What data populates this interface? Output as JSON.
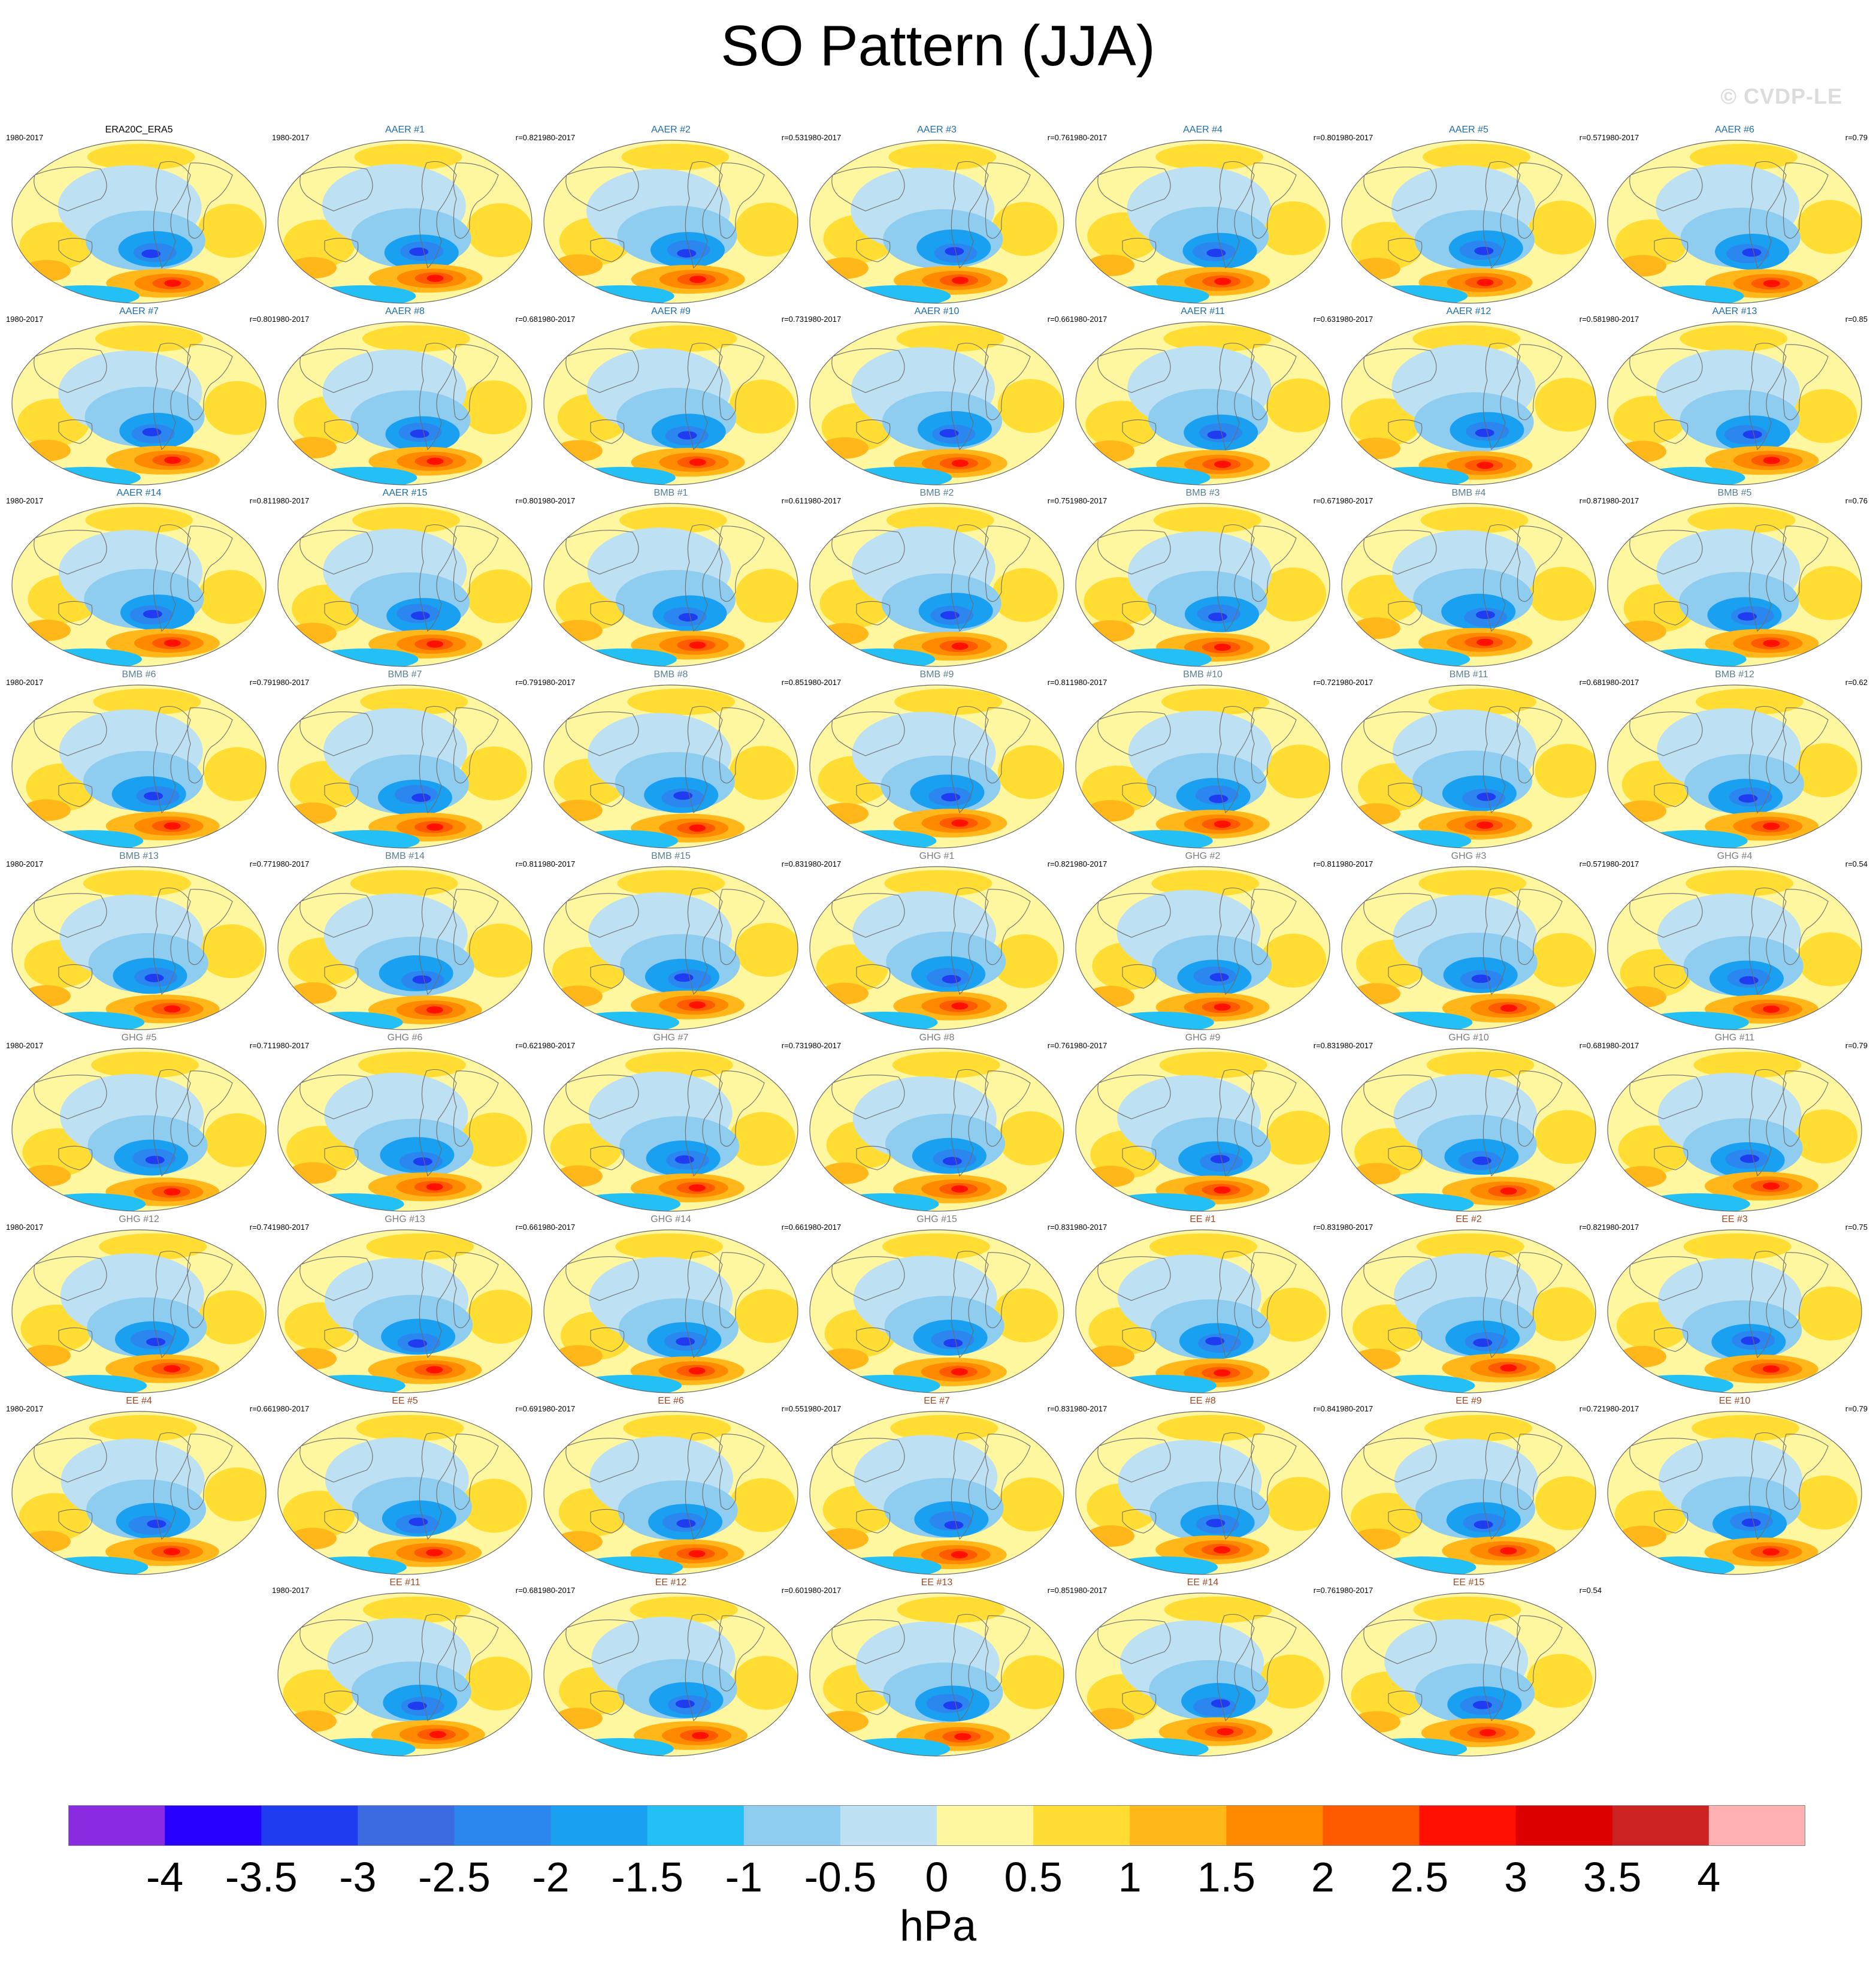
{
  "title": "SO Pattern (JJA)",
  "watermark": "© CVDP-LE",
  "units": "hPa",
  "colors": {
    "AAER": "#1f6ea8",
    "BMB": "#5a7f8e",
    "GHG": "#7d7d7d",
    "EE": "#a0481f",
    "ref": "#000000",
    "land_outline": "#6e6e6e"
  },
  "colorbar": {
    "colors": [
      "#8a2be2",
      "#2800ff",
      "#1f3cf0",
      "#3c6ae0",
      "#2b86f0",
      "#19a0f0",
      "#22c0f5",
      "#8ecdf0",
      "#bde0f2",
      "#fff7a0",
      "#ffdd33",
      "#ffb71a",
      "#ff8a00",
      "#ff5a00",
      "#ff1000",
      "#dd0000",
      "#cc2222",
      "#ffb0b0"
    ],
    "ticks": [
      "-4",
      "-3.5",
      "-3",
      "-2.5",
      "-2",
      "-1.5",
      "-1",
      "-0.5",
      "0",
      "0.5",
      "1",
      "1.5",
      "2",
      "2.5",
      "3",
      "3.5",
      "4"
    ]
  },
  "panels": [
    {
      "title": "ERA20C_ERA5",
      "period": "1980-2017",
      "r": "",
      "group": "ref"
    },
    {
      "title": "AAER #1",
      "period": "1980-2017",
      "r": "r=0.82",
      "group": "AAER"
    },
    {
      "title": "AAER #2",
      "period": "1980-2017",
      "r": "r=0.53",
      "group": "AAER"
    },
    {
      "title": "AAER #3",
      "period": "1980-2017",
      "r": "r=0.76",
      "group": "AAER"
    },
    {
      "title": "AAER #4",
      "period": "1980-2017",
      "r": "r=0.80",
      "group": "AAER"
    },
    {
      "title": "AAER #5",
      "period": "1980-2017",
      "r": "r=0.57",
      "group": "AAER"
    },
    {
      "title": "AAER #6",
      "period": "1980-2017",
      "r": "r=0.79",
      "group": "AAER"
    },
    {
      "title": "AAER #7",
      "period": "1980-2017",
      "r": "r=0.80",
      "group": "AAER"
    },
    {
      "title": "AAER #8",
      "period": "1980-2017",
      "r": "r=0.68",
      "group": "AAER"
    },
    {
      "title": "AAER #9",
      "period": "1980-2017",
      "r": "r=0.73",
      "group": "AAER"
    },
    {
      "title": "AAER #10",
      "period": "1980-2017",
      "r": "r=0.66",
      "group": "AAER"
    },
    {
      "title": "AAER #11",
      "period": "1980-2017",
      "r": "r=0.63",
      "group": "AAER"
    },
    {
      "title": "AAER #12",
      "period": "1980-2017",
      "r": "r=0.58",
      "group": "AAER"
    },
    {
      "title": "AAER #13",
      "period": "1980-2017",
      "r": "r=0.85",
      "group": "AAER"
    },
    {
      "title": "AAER #14",
      "period": "1980-2017",
      "r": "r=0.81",
      "group": "AAER"
    },
    {
      "title": "AAER #15",
      "period": "1980-2017",
      "r": "r=0.80",
      "group": "AAER"
    },
    {
      "title": "BMB #1",
      "period": "1980-2017",
      "r": "r=0.61",
      "group": "BMB"
    },
    {
      "title": "BMB #2",
      "period": "1980-2017",
      "r": "r=0.75",
      "group": "BMB"
    },
    {
      "title": "BMB #3",
      "period": "1980-2017",
      "r": "r=0.67",
      "group": "BMB"
    },
    {
      "title": "BMB #4",
      "period": "1980-2017",
      "r": "r=0.87",
      "group": "BMB"
    },
    {
      "title": "BMB #5",
      "period": "1980-2017",
      "r": "r=0.76",
      "group": "BMB"
    },
    {
      "title": "BMB #6",
      "period": "1980-2017",
      "r": "r=0.79",
      "group": "BMB"
    },
    {
      "title": "BMB #7",
      "period": "1980-2017",
      "r": "r=0.79",
      "group": "BMB"
    },
    {
      "title": "BMB #8",
      "period": "1980-2017",
      "r": "r=0.85",
      "group": "BMB"
    },
    {
      "title": "BMB #9",
      "period": "1980-2017",
      "r": "r=0.81",
      "group": "BMB"
    },
    {
      "title": "BMB #10",
      "period": "1980-2017",
      "r": "r=0.72",
      "group": "BMB"
    },
    {
      "title": "BMB #11",
      "period": "1980-2017",
      "r": "r=0.68",
      "group": "BMB"
    },
    {
      "title": "BMB #12",
      "period": "1980-2017",
      "r": "r=0.62",
      "group": "BMB"
    },
    {
      "title": "BMB #13",
      "period": "1980-2017",
      "r": "r=0.77",
      "group": "BMB"
    },
    {
      "title": "BMB #14",
      "period": "1980-2017",
      "r": "r=0.81",
      "group": "BMB"
    },
    {
      "title": "BMB #15",
      "period": "1980-2017",
      "r": "r=0.83",
      "group": "BMB"
    },
    {
      "title": "GHG #1",
      "period": "1980-2017",
      "r": "r=0.82",
      "group": "GHG"
    },
    {
      "title": "GHG #2",
      "period": "1980-2017",
      "r": "r=0.81",
      "group": "GHG"
    },
    {
      "title": "GHG #3",
      "period": "1980-2017",
      "r": "r=0.57",
      "group": "GHG"
    },
    {
      "title": "GHG #4",
      "period": "1980-2017",
      "r": "r=0.54",
      "group": "GHG"
    },
    {
      "title": "GHG #5",
      "period": "1980-2017",
      "r": "r=0.71",
      "group": "GHG"
    },
    {
      "title": "GHG #6",
      "period": "1980-2017",
      "r": "r=0.62",
      "group": "GHG"
    },
    {
      "title": "GHG #7",
      "period": "1980-2017",
      "r": "r=0.73",
      "group": "GHG"
    },
    {
      "title": "GHG #8",
      "period": "1980-2017",
      "r": "r=0.76",
      "group": "GHG"
    },
    {
      "title": "GHG #9",
      "period": "1980-2017",
      "r": "r=0.83",
      "group": "GHG"
    },
    {
      "title": "GHG #10",
      "period": "1980-2017",
      "r": "r=0.68",
      "group": "GHG"
    },
    {
      "title": "GHG #11",
      "period": "1980-2017",
      "r": "r=0.79",
      "group": "GHG"
    },
    {
      "title": "GHG #12",
      "period": "1980-2017",
      "r": "r=0.74",
      "group": "GHG"
    },
    {
      "title": "GHG #13",
      "period": "1980-2017",
      "r": "r=0.66",
      "group": "GHG"
    },
    {
      "title": "GHG #14",
      "period": "1980-2017",
      "r": "r=0.66",
      "group": "GHG"
    },
    {
      "title": "GHG #15",
      "period": "1980-2017",
      "r": "r=0.83",
      "group": "GHG"
    },
    {
      "title": "EE #1",
      "period": "1980-2017",
      "r": "r=0.83",
      "group": "EE"
    },
    {
      "title": "EE #2",
      "period": "1980-2017",
      "r": "r=0.82",
      "group": "EE"
    },
    {
      "title": "EE #3",
      "period": "1980-2017",
      "r": "r=0.75",
      "group": "EE"
    },
    {
      "title": "EE #4",
      "period": "1980-2017",
      "r": "r=0.66",
      "group": "EE"
    },
    {
      "title": "EE #5",
      "period": "1980-2017",
      "r": "r=0.69",
      "group": "EE"
    },
    {
      "title": "EE #6",
      "period": "1980-2017",
      "r": "r=0.55",
      "group": "EE"
    },
    {
      "title": "EE #7",
      "period": "1980-2017",
      "r": "r=0.83",
      "group": "EE"
    },
    {
      "title": "EE #8",
      "period": "1980-2017",
      "r": "r=0.84",
      "group": "EE"
    },
    {
      "title": "EE #9",
      "period": "1980-2017",
      "r": "r=0.72",
      "group": "EE"
    },
    {
      "title": "EE #10",
      "period": "1980-2017",
      "r": "r=0.79",
      "group": "EE"
    },
    {
      "title": "EE #11",
      "period": "1980-2017",
      "r": "r=0.68",
      "group": "EE"
    },
    {
      "title": "EE #12",
      "period": "1980-2017",
      "r": "r=0.60",
      "group": "EE"
    },
    {
      "title": "EE #13",
      "period": "1980-2017",
      "r": "r=0.85",
      "group": "EE"
    },
    {
      "title": "EE #14",
      "period": "1980-2017",
      "r": "r=0.76",
      "group": "EE"
    },
    {
      "title": "EE #15",
      "period": "1980-2017",
      "r": "r=0.54",
      "group": "EE"
    }
  ],
  "chart_data": {
    "type": "heatmap",
    "title": "SO Pattern (JJA)",
    "variable_units": "hPa",
    "levels": [
      -4,
      -3.5,
      -3,
      -2.5,
      -2,
      -1.5,
      -1,
      -0.5,
      0,
      0.5,
      1,
      1.5,
      2,
      2.5,
      3,
      3.5,
      4
    ],
    "reference": {
      "name": "ERA20C_ERA5",
      "period": "1980-2017"
    },
    "members": [
      {
        "name": "AAER #1",
        "r": 0.82
      },
      {
        "name": "AAER #2",
        "r": 0.53
      },
      {
        "name": "AAER #3",
        "r": 0.76
      },
      {
        "name": "AAER #4",
        "r": 0.8
      },
      {
        "name": "AAER #5",
        "r": 0.57
      },
      {
        "name": "AAER #6",
        "r": 0.79
      },
      {
        "name": "AAER #7",
        "r": 0.8
      },
      {
        "name": "AAER #8",
        "r": 0.68
      },
      {
        "name": "AAER #9",
        "r": 0.73
      },
      {
        "name": "AAER #10",
        "r": 0.66
      },
      {
        "name": "AAER #11",
        "r": 0.63
      },
      {
        "name": "AAER #12",
        "r": 0.58
      },
      {
        "name": "AAER #13",
        "r": 0.85
      },
      {
        "name": "AAER #14",
        "r": 0.81
      },
      {
        "name": "AAER #15",
        "r": 0.8
      },
      {
        "name": "BMB #1",
        "r": 0.61
      },
      {
        "name": "BMB #2",
        "r": 0.75
      },
      {
        "name": "BMB #3",
        "r": 0.67
      },
      {
        "name": "BMB #4",
        "r": 0.87
      },
      {
        "name": "BMB #5",
        "r": 0.76
      },
      {
        "name": "BMB #6",
        "r": 0.79
      },
      {
        "name": "BMB #7",
        "r": 0.79
      },
      {
        "name": "BMB #8",
        "r": 0.85
      },
      {
        "name": "BMB #9",
        "r": 0.81
      },
      {
        "name": "BMB #10",
        "r": 0.72
      },
      {
        "name": "BMB #11",
        "r": 0.68
      },
      {
        "name": "BMB #12",
        "r": 0.62
      },
      {
        "name": "BMB #13",
        "r": 0.77
      },
      {
        "name": "BMB #14",
        "r": 0.81
      },
      {
        "name": "BMB #15",
        "r": 0.83
      },
      {
        "name": "GHG #1",
        "r": 0.82
      },
      {
        "name": "GHG #2",
        "r": 0.81
      },
      {
        "name": "GHG #3",
        "r": 0.57
      },
      {
        "name": "GHG #4",
        "r": 0.54
      },
      {
        "name": "GHG #5",
        "r": 0.71
      },
      {
        "name": "GHG #6",
        "r": 0.62
      },
      {
        "name": "GHG #7",
        "r": 0.73
      },
      {
        "name": "GHG #8",
        "r": 0.76
      },
      {
        "name": "GHG #9",
        "r": 0.83
      },
      {
        "name": "GHG #10",
        "r": 0.68
      },
      {
        "name": "GHG #11",
        "r": 0.79
      },
      {
        "name": "GHG #12",
        "r": 0.74
      },
      {
        "name": "GHG #13",
        "r": 0.66
      },
      {
        "name": "GHG #14",
        "r": 0.66
      },
      {
        "name": "GHG #15",
        "r": 0.83
      },
      {
        "name": "EE #1",
        "r": 0.83
      },
      {
        "name": "EE #2",
        "r": 0.82
      },
      {
        "name": "EE #3",
        "r": 0.75
      },
      {
        "name": "EE #4",
        "r": 0.66
      },
      {
        "name": "EE #5",
        "r": 0.69
      },
      {
        "name": "EE #6",
        "r": 0.55
      },
      {
        "name": "EE #7",
        "r": 0.83
      },
      {
        "name": "EE #8",
        "r": 0.84
      },
      {
        "name": "EE #9",
        "r": 0.72
      },
      {
        "name": "EE #10",
        "r": 0.79
      },
      {
        "name": "EE #11",
        "r": 0.68
      },
      {
        "name": "EE #12",
        "r": 0.6
      },
      {
        "name": "EE #13",
        "r": 0.85
      },
      {
        "name": "EE #14",
        "r": 0.76
      },
      {
        "name": "EE #15",
        "r": 0.54
      }
    ]
  }
}
